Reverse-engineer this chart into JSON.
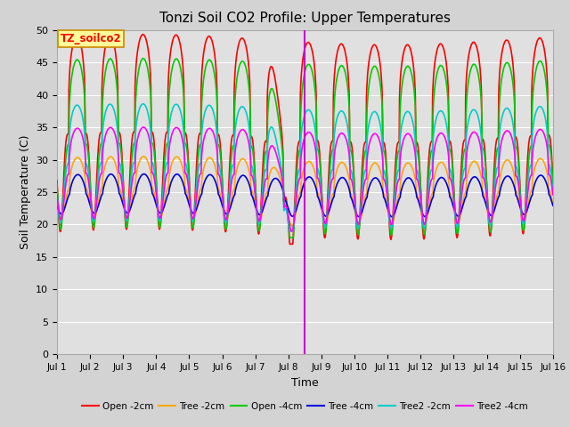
{
  "title": "Tonzi Soil CO2 Profile: Upper Temperatures",
  "xlabel": "Time",
  "ylabel": "Soil Temperature (C)",
  "label_text": "TZ_soilco2",
  "ylim": [
    0,
    50
  ],
  "yticks": [
    0,
    5,
    10,
    15,
    20,
    25,
    30,
    35,
    40,
    45,
    50
  ],
  "xtick_labels": [
    "Jul 1",
    "Jul 2",
    "Jul 3",
    "Jul 4",
    "Jul 5",
    "Jul 6",
    "Jul 7",
    "Jul 8",
    "Jul 9",
    "Jul 10",
    "Jul 11",
    "Jul 12",
    "Jul 13",
    "Jul 14",
    "Jul 15",
    "Jul 16"
  ],
  "series": [
    {
      "name": "Open -2cm",
      "color": "#ff0000",
      "lw": 1.2
    },
    {
      "name": "Tree -2cm",
      "color": "#ffa500",
      "lw": 1.2
    },
    {
      "name": "Open -4cm",
      "color": "#00cc00",
      "lw": 1.2
    },
    {
      "name": "Tree -4cm",
      "color": "#0000dd",
      "lw": 1.2
    },
    {
      "name": "Tree2 -2cm",
      "color": "#00cccc",
      "lw": 1.2
    },
    {
      "name": "Tree2 -4cm",
      "color": "#ff00ff",
      "lw": 1.2
    }
  ],
  "vertical_line_x": 7.5,
  "vertical_line_color": "#cc00cc",
  "background_color": "#d3d3d3",
  "plot_bg_color": "#e0e0e0",
  "title_fontsize": 11,
  "label_box_color": "#ffff99",
  "label_box_edgecolor": "#cc8800",
  "open2_base": 18.5,
  "open2_amp": 30.0,
  "tree2_base": 20.5,
  "tree2_amp": 9.5,
  "open4_base": 19.0,
  "open4_amp": 26.0,
  "tree4_base": 21.5,
  "tree4_amp": 6.0,
  "tree2_2_base": 20.0,
  "tree2_2_amp": 18.0,
  "tree2_4_base": 20.5,
  "tree2_4_amp": 14.0,
  "peak_sharpness": 4.0,
  "trough_sharpness": 2.0,
  "n_days": 15,
  "pts_per_day": 100
}
